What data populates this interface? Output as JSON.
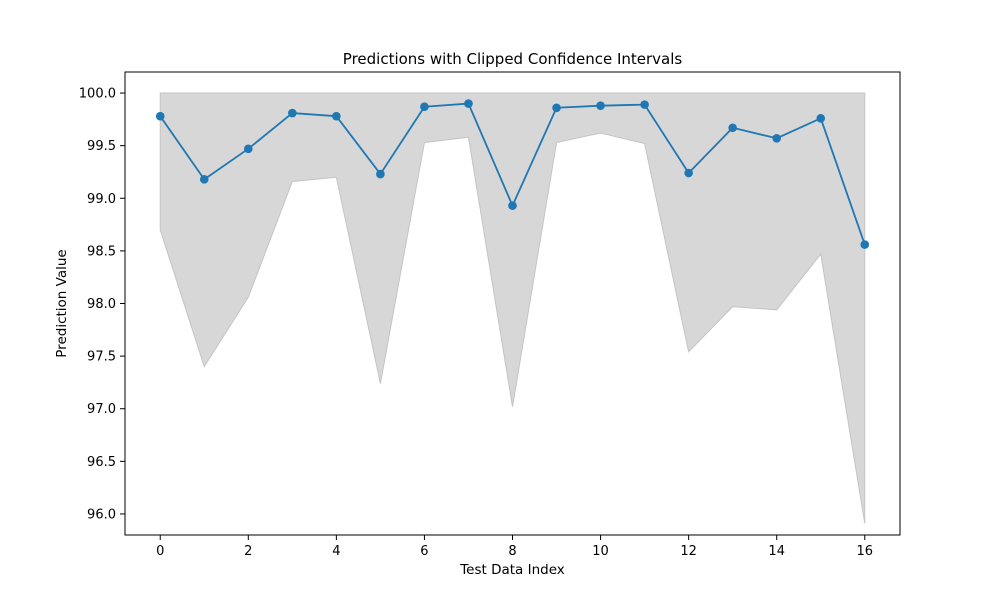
{
  "chart_data": {
    "type": "line",
    "title": "Predictions with Clipped Confidence Intervals",
    "xlabel": "Test Data Index",
    "ylabel": "Prediction Value",
    "xlim": [
      -0.8,
      16.8
    ],
    "ylim": [
      95.8,
      100.2
    ],
    "x_ticks": [
      0,
      2,
      4,
      6,
      8,
      10,
      12,
      14,
      16
    ],
    "y_ticks": [
      "96.0",
      "96.5",
      "97.0",
      "97.5",
      "98.0",
      "98.5",
      "99.0",
      "99.5",
      "100.0"
    ],
    "grid": false,
    "x": [
      0,
      1,
      2,
      3,
      4,
      5,
      6,
      7,
      8,
      9,
      10,
      11,
      12,
      13,
      14,
      15,
      16
    ],
    "series": [
      {
        "values": [
          99.78,
          99.18,
          99.47,
          99.81,
          99.78,
          99.23,
          99.87,
          99.9,
          98.93,
          99.86,
          99.88,
          99.89,
          99.24,
          99.67,
          99.57,
          99.76,
          98.56
        ],
        "color": "#1f77b4",
        "marker": "circle"
      }
    ],
    "confidence_band": {
      "lower": [
        98.7,
        97.4,
        98.06,
        99.16,
        99.2,
        97.24,
        99.53,
        99.58,
        97.02,
        99.53,
        99.62,
        99.52,
        97.54,
        97.97,
        97.94,
        98.47,
        95.91
      ],
      "upper": [
        100.0,
        100.0,
        100.0,
        100.0,
        100.0,
        100.0,
        100.0,
        100.0,
        100.0,
        100.0,
        100.0,
        100.0,
        100.0,
        100.0,
        100.0,
        100.0,
        100.0
      ],
      "fill_color": "#d7d7d7",
      "edge_color": "#c4c4c4"
    }
  }
}
